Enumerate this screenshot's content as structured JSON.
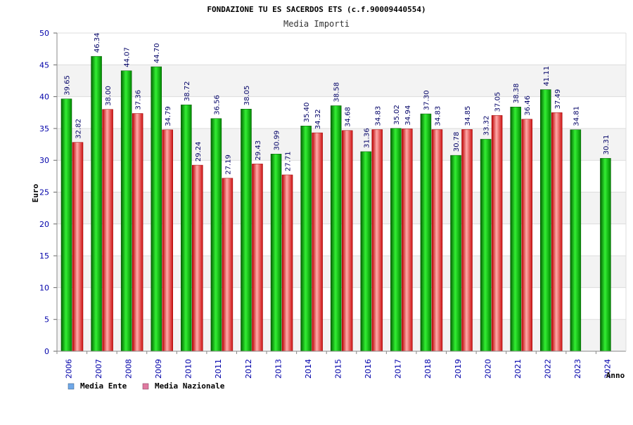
{
  "chart_data": {
    "type": "bar",
    "title": "FONDAZIONE TU ES SACERDOS ETS (c.f.90009440554)",
    "subtitle": "Media Importi",
    "ylabel": "Euro",
    "xlabel": "Anno",
    "ylim": [
      0,
      50
    ],
    "yticks": [
      0,
      5,
      10,
      15,
      20,
      25,
      30,
      35,
      40,
      45,
      50
    ],
    "grid": true,
    "legend_position": "bottom-left",
    "categories": [
      "2006",
      "2007",
      "2008",
      "2009",
      "2010",
      "2011",
      "2012",
      "2013",
      "2014",
      "2015",
      "2016",
      "2017",
      "2018",
      "2019",
      "2020",
      "2021",
      "2022",
      "2023",
      "2024"
    ],
    "series": [
      {
        "name": "Media Ente",
        "color": "#00bb00",
        "legend_color": "#6fa8e8",
        "values": [
          39.65,
          46.34,
          44.07,
          44.7,
          38.72,
          36.56,
          38.05,
          30.99,
          35.4,
          38.58,
          31.36,
          35.02,
          37.3,
          30.78,
          33.32,
          38.38,
          41.11,
          34.81,
          30.31
        ],
        "labels": [
          "39.65",
          "46.34",
          "44.07",
          "44.70",
          "38.72",
          "36.56",
          "38.05",
          "30.99",
          "35.40",
          "38.58",
          "31.36",
          "35.02",
          "37.30",
          "30.78",
          "33.32",
          "38.38",
          "41.11",
          "34.81",
          "30.31"
        ]
      },
      {
        "name": "Media Nazionale",
        "color": "#ee2222",
        "legend_color": "#e07aa0",
        "values": [
          32.82,
          38.0,
          37.36,
          34.79,
          29.24,
          27.19,
          29.43,
          27.71,
          34.32,
          34.68,
          34.83,
          34.94,
          34.83,
          34.85,
          37.05,
          36.46,
          37.49,
          null,
          null
        ],
        "labels": [
          "32.82",
          "38.00",
          "37.36",
          "34.79",
          "29.24",
          "27.19",
          "29.43",
          "27.71",
          "34.32",
          "34.68",
          "34.83",
          "34.94",
          "34.83",
          "34.85",
          "37.05",
          "36.46",
          "37.49",
          "",
          ""
        ]
      }
    ]
  }
}
